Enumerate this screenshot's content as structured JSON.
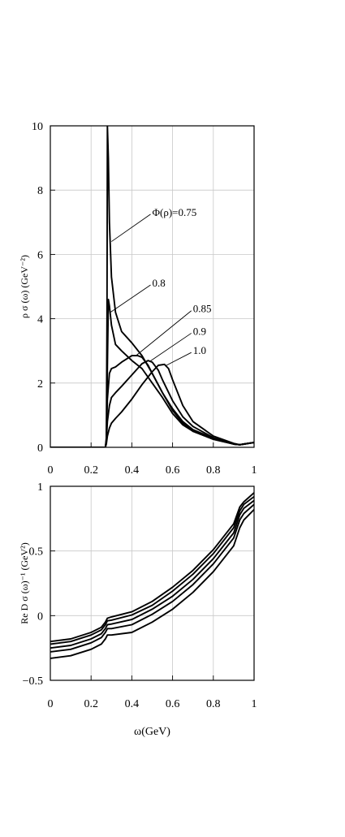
{
  "chart_data": [
    {
      "type": "line",
      "title": "",
      "xlabel": "",
      "ylabel": "ρ σ (ω)   (GeV⁻²)",
      "xlim": [
        0,
        1
      ],
      "ylim": [
        0,
        10
      ],
      "x_ticks": [
        "0",
        "0.2",
        "0.4",
        "0.6",
        "0.8",
        "1"
      ],
      "y_ticks": [
        "0",
        "2",
        "4",
        "6",
        "8",
        "10"
      ],
      "grid": true,
      "series": [
        {
          "name": "Φ(ρ)=0.75",
          "points": [
            [
              0.0,
              0
            ],
            [
              0.27,
              0
            ],
            [
              0.275,
              0.2
            ],
            [
              0.278,
              4
            ],
            [
              0.28,
              10
            ],
            [
              0.285,
              9.0
            ],
            [
              0.29,
              7.0
            ],
            [
              0.3,
              5.3
            ],
            [
              0.32,
              4.2
            ],
            [
              0.35,
              3.6
            ],
            [
              0.4,
              3.25
            ],
            [
              0.45,
              2.85
            ],
            [
              0.5,
              2.3
            ],
            [
              0.55,
              1.7
            ],
            [
              0.6,
              1.15
            ],
            [
              0.65,
              0.75
            ],
            [
              0.7,
              0.5
            ],
            [
              0.8,
              0.25
            ],
            [
              0.9,
              0.1
            ],
            [
              0.93,
              0.08
            ],
            [
              0.95,
              0.1
            ],
            [
              1.0,
              0.15
            ]
          ]
        },
        {
          "name": "0.8",
          "points": [
            [
              0.0,
              0
            ],
            [
              0.27,
              0
            ],
            [
              0.275,
              0.2
            ],
            [
              0.28,
              2.5
            ],
            [
              0.285,
              4.6
            ],
            [
              0.29,
              4.4
            ],
            [
              0.3,
              3.8
            ],
            [
              0.32,
              3.2
            ],
            [
              0.35,
              3.0
            ],
            [
              0.4,
              2.7
            ],
            [
              0.45,
              2.45
            ],
            [
              0.5,
              2.0
            ],
            [
              0.55,
              1.55
            ],
            [
              0.6,
              1.05
            ],
            [
              0.65,
              0.7
            ],
            [
              0.7,
              0.5
            ],
            [
              0.8,
              0.25
            ],
            [
              0.9,
              0.1
            ],
            [
              0.93,
              0.08
            ],
            [
              0.95,
              0.1
            ],
            [
              1.0,
              0.15
            ]
          ]
        },
        {
          "name": "0.85",
          "points": [
            [
              0.0,
              0
            ],
            [
              0.27,
              0
            ],
            [
              0.275,
              0.3
            ],
            [
              0.28,
              1.5
            ],
            [
              0.29,
              2.3
            ],
            [
              0.3,
              2.45
            ],
            [
              0.32,
              2.5
            ],
            [
              0.35,
              2.65
            ],
            [
              0.4,
              2.85
            ],
            [
              0.43,
              2.85
            ],
            [
              0.45,
              2.8
            ],
            [
              0.48,
              2.55
            ],
            [
              0.5,
              2.3
            ],
            [
              0.55,
              1.7
            ],
            [
              0.6,
              1.2
            ],
            [
              0.65,
              0.8
            ],
            [
              0.7,
              0.55
            ],
            [
              0.8,
              0.28
            ],
            [
              0.9,
              0.1
            ],
            [
              0.93,
              0.08
            ],
            [
              0.95,
              0.1
            ],
            [
              1.0,
              0.15
            ]
          ]
        },
        {
          "name": "0.9",
          "points": [
            [
              0.0,
              0
            ],
            [
              0.27,
              0
            ],
            [
              0.275,
              0.2
            ],
            [
              0.28,
              0.8
            ],
            [
              0.29,
              1.3
            ],
            [
              0.3,
              1.55
            ],
            [
              0.32,
              1.7
            ],
            [
              0.35,
              1.9
            ],
            [
              0.4,
              2.25
            ],
            [
              0.45,
              2.6
            ],
            [
              0.48,
              2.7
            ],
            [
              0.5,
              2.65
            ],
            [
              0.53,
              2.4
            ],
            [
              0.55,
              2.1
            ],
            [
              0.6,
              1.45
            ],
            [
              0.65,
              0.95
            ],
            [
              0.7,
              0.65
            ],
            [
              0.8,
              0.3
            ],
            [
              0.9,
              0.1
            ],
            [
              0.93,
              0.08
            ],
            [
              0.95,
              0.1
            ],
            [
              1.0,
              0.15
            ]
          ]
        },
        {
          "name": "1.0",
          "points": [
            [
              0.0,
              0
            ],
            [
              0.27,
              0
            ],
            [
              0.275,
              0.1
            ],
            [
              0.28,
              0.35
            ],
            [
              0.29,
              0.6
            ],
            [
              0.3,
              0.75
            ],
            [
              0.32,
              0.9
            ],
            [
              0.35,
              1.1
            ],
            [
              0.4,
              1.5
            ],
            [
              0.45,
              1.95
            ],
            [
              0.5,
              2.35
            ],
            [
              0.53,
              2.55
            ],
            [
              0.56,
              2.58
            ],
            [
              0.58,
              2.45
            ],
            [
              0.6,
              2.1
            ],
            [
              0.65,
              1.3
            ],
            [
              0.7,
              0.8
            ],
            [
              0.8,
              0.35
            ],
            [
              0.9,
              0.12
            ],
            [
              0.93,
              0.08
            ],
            [
              0.95,
              0.1
            ],
            [
              1.0,
              0.15
            ]
          ]
        }
      ],
      "annotations": [
        {
          "text": "Φ(ρ)=0.75",
          "series": 0,
          "target": [
            0.3,
            6.4
          ],
          "label_at": [
            0.5,
            7.3
          ]
        },
        {
          "text": "0.8",
          "series": 1,
          "target": [
            0.295,
            4.2
          ],
          "label_at": [
            0.5,
            5.1
          ]
        },
        {
          "text": "0.85",
          "series": 2,
          "target": [
            0.42,
            2.85
          ],
          "label_at": [
            0.7,
            4.3
          ]
        },
        {
          "text": "0.9",
          "series": 3,
          "target": [
            0.49,
            2.68
          ],
          "label_at": [
            0.7,
            3.6
          ]
        },
        {
          "text": "1.0",
          "series": 4,
          "target": [
            0.57,
            2.55
          ],
          "label_at": [
            0.7,
            3.0
          ]
        }
      ]
    },
    {
      "type": "line",
      "title": "",
      "xlabel": "ω(GeV)",
      "ylabel": "Re D σ (ω)⁻¹  (GeV²)",
      "xlim": [
        0,
        1
      ],
      "ylim": [
        -0.5,
        1
      ],
      "x_ticks": [
        "0",
        "0.2",
        "0.4",
        "0.6",
        "0.8",
        "1"
      ],
      "y_ticks": [
        "−0.5",
        "0",
        "0.5",
        "1"
      ],
      "grid": true,
      "series": [
        {
          "points": [
            [
              0.0,
              -0.2
            ],
            [
              0.1,
              -0.18
            ],
            [
              0.2,
              -0.13
            ],
            [
              0.25,
              -0.09
            ],
            [
              0.27,
              -0.05
            ],
            [
              0.28,
              -0.02
            ],
            [
              0.3,
              -0.01
            ],
            [
              0.4,
              0.03
            ],
            [
              0.5,
              0.11
            ],
            [
              0.6,
              0.22
            ],
            [
              0.7,
              0.35
            ],
            [
              0.8,
              0.51
            ],
            [
              0.9,
              0.71
            ],
            [
              0.93,
              0.84
            ],
            [
              0.95,
              0.88
            ],
            [
              1.0,
              0.95
            ]
          ]
        },
        {
          "points": [
            [
              0.0,
              -0.22
            ],
            [
              0.1,
              -0.2
            ],
            [
              0.2,
              -0.15
            ],
            [
              0.25,
              -0.11
            ],
            [
              0.27,
              -0.07
            ],
            [
              0.28,
              -0.04
            ],
            [
              0.3,
              -0.035
            ],
            [
              0.4,
              0.005
            ],
            [
              0.5,
              0.08
            ],
            [
              0.6,
              0.19
            ],
            [
              0.7,
              0.32
            ],
            [
              0.8,
              0.48
            ],
            [
              0.9,
              0.68
            ],
            [
              0.93,
              0.81
            ],
            [
              0.95,
              0.86
            ],
            [
              1.0,
              0.92
            ]
          ]
        },
        {
          "points": [
            [
              0.0,
              -0.25
            ],
            [
              0.1,
              -0.23
            ],
            [
              0.2,
              -0.18
            ],
            [
              0.25,
              -0.14
            ],
            [
              0.27,
              -0.1
            ],
            [
              0.28,
              -0.07
            ],
            [
              0.3,
              -0.065
            ],
            [
              0.4,
              -0.03
            ],
            [
              0.5,
              0.05
            ],
            [
              0.6,
              0.15
            ],
            [
              0.7,
              0.28
            ],
            [
              0.8,
              0.44
            ],
            [
              0.9,
              0.64
            ],
            [
              0.93,
              0.78
            ],
            [
              0.95,
              0.83
            ],
            [
              1.0,
              0.89
            ]
          ]
        },
        {
          "points": [
            [
              0.0,
              -0.28
            ],
            [
              0.1,
              -0.26
            ],
            [
              0.2,
              -0.21
            ],
            [
              0.25,
              -0.17
            ],
            [
              0.27,
              -0.13
            ],
            [
              0.28,
              -0.1
            ],
            [
              0.3,
              -0.1
            ],
            [
              0.4,
              -0.07
            ],
            [
              0.5,
              0.01
            ],
            [
              0.6,
              0.11
            ],
            [
              0.7,
              0.24
            ],
            [
              0.8,
              0.4
            ],
            [
              0.9,
              0.6
            ],
            [
              0.93,
              0.74
            ],
            [
              0.95,
              0.79
            ],
            [
              1.0,
              0.86
            ]
          ]
        },
        {
          "points": [
            [
              0.0,
              -0.33
            ],
            [
              0.1,
              -0.31
            ],
            [
              0.2,
              -0.26
            ],
            [
              0.25,
              -0.22
            ],
            [
              0.27,
              -0.18
            ],
            [
              0.28,
              -0.15
            ],
            [
              0.3,
              -0.15
            ],
            [
              0.4,
              -0.13
            ],
            [
              0.5,
              -0.05
            ],
            [
              0.6,
              0.05
            ],
            [
              0.7,
              0.18
            ],
            [
              0.8,
              0.34
            ],
            [
              0.9,
              0.54
            ],
            [
              0.93,
              0.68
            ],
            [
              0.95,
              0.74
            ],
            [
              1.0,
              0.82
            ]
          ]
        }
      ]
    }
  ]
}
